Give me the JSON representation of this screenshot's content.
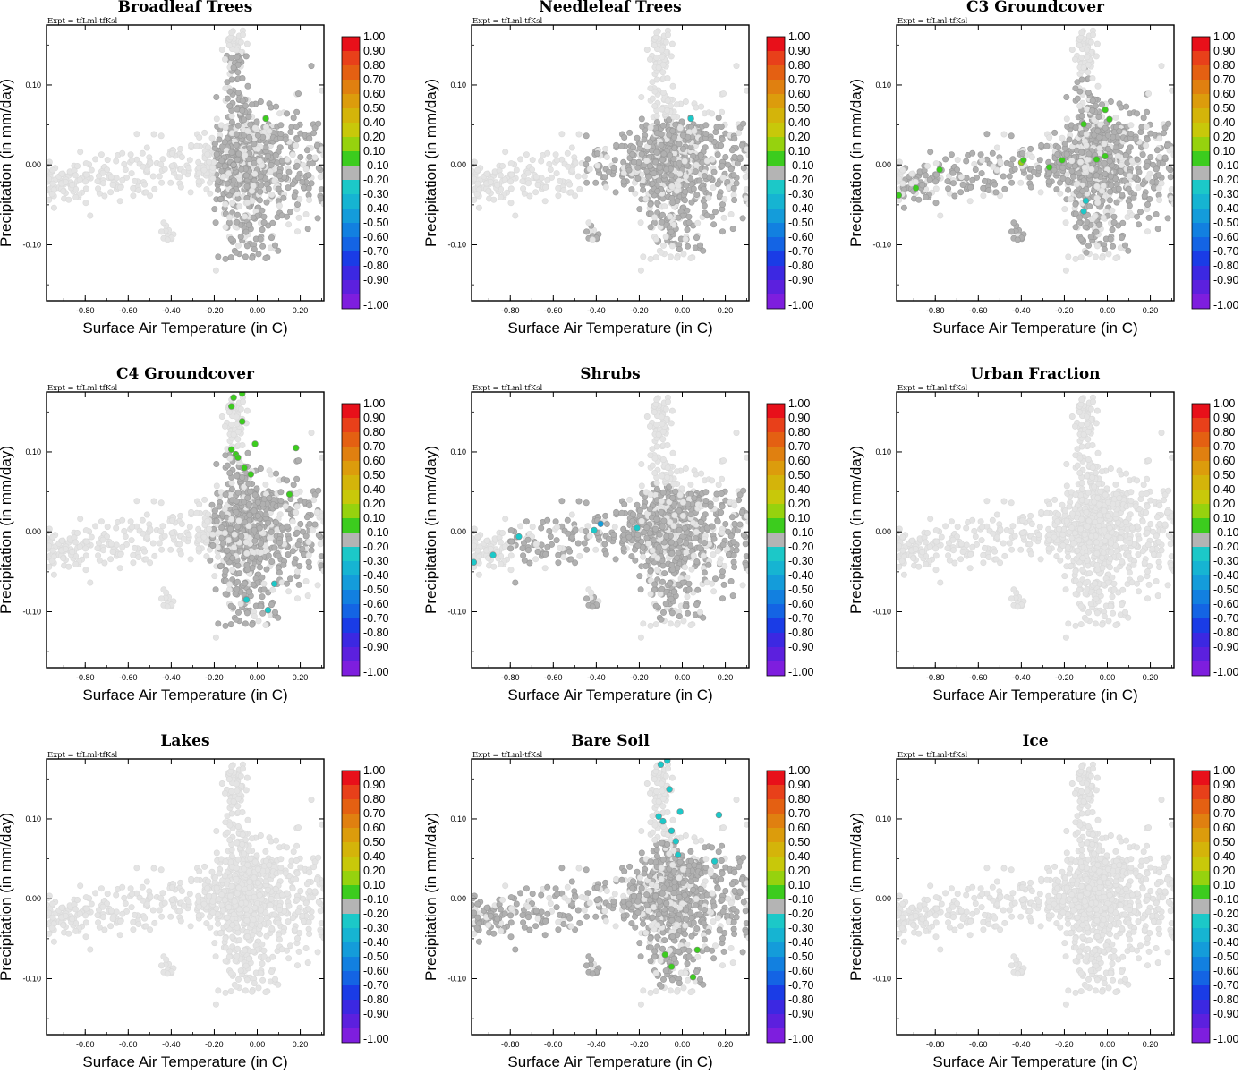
{
  "figure": {
    "expt_label": "Expt = tfLml-tfKsl",
    "colorbar": {
      "labels": [
        "1.00",
        "0.90",
        "0.80",
        "0.70",
        "0.60",
        "0.50",
        "0.40",
        "0.20",
        "0.10",
        "-0.10",
        "-0.20",
        "-0.30",
        "-0.40",
        "-0.50",
        "-0.60",
        "-0.70",
        "-0.80",
        "-0.90",
        "-1.00"
      ],
      "colors": [
        "#e8101a",
        "#e8401a",
        "#e46012",
        "#e08010",
        "#dc9c0c",
        "#d4b40a",
        "#c8c80a",
        "#96d20e",
        "#3ccc1e",
        "#b4b4b4",
        "#1cc8c8",
        "#16b4d2",
        "#149cda",
        "#1280e0",
        "#1464e4",
        "#1a3ce6",
        "#3c28e2",
        "#5c20de",
        "#7e1ede"
      ]
    }
  },
  "chart_data": [
    {
      "type": "scatter",
      "title": "Broadleaf Trees",
      "xlabel": "Surface Air Temperature (in C)",
      "ylabel": "Precipitation (in mm/day)",
      "xlim": [
        -0.98,
        0.31
      ],
      "ylim": [
        -0.17,
        0.175
      ],
      "xticks": [
        "-0.80",
        "-0.60",
        "-0.40",
        "-0.20",
        "0.00",
        "0.20"
      ],
      "yticks": [
        "0.10",
        "0.00",
        "-0.10"
      ],
      "highlight": {
        "x_min": -0.2,
        "x_max": 0.3,
        "y_min": -0.12,
        "y_max": 0.14
      },
      "colored_points": [
        {
          "x": 0.04,
          "y": 0.058,
          "color": "#3ccc1e"
        },
        {
          "x": -0.11,
          "y": 0.0,
          "color": "#b4b4b4"
        }
      ]
    },
    {
      "type": "scatter",
      "title": "Needleleaf Trees",
      "xlabel": "Surface Air Temperature (in C)",
      "ylabel": "Precipitation (in mm/day)",
      "xlim": [
        -0.98,
        0.31
      ],
      "ylim": [
        -0.17,
        0.175
      ],
      "xticks": [
        "-0.80",
        "-0.60",
        "-0.40",
        "-0.20",
        "0.00",
        "0.20"
      ],
      "yticks": [
        "0.10",
        "0.00",
        "-0.10"
      ],
      "highlight": {
        "x_min": -0.45,
        "x_max": 0.3,
        "y_min": -0.11,
        "y_max": 0.06
      },
      "colored_points": [
        {
          "x": 0.04,
          "y": 0.058,
          "color": "#1cc8c8"
        }
      ]
    },
    {
      "type": "scatter",
      "title": "C3 Groundcover",
      "xlabel": "Surface Air Temperature (in C)",
      "ylabel": "Precipitation (in mm/day)",
      "xlim": [
        -0.98,
        0.31
      ],
      "ylim": [
        -0.17,
        0.175
      ],
      "xticks": [
        "-0.80",
        "-0.60",
        "-0.40",
        "-0.20",
        "0.00",
        "0.20"
      ],
      "yticks": [
        "0.10",
        "0.00",
        "-0.10"
      ],
      "highlight": {
        "x_min": -0.95,
        "x_max": 0.3,
        "y_min": -0.11,
        "y_max": 0.12
      },
      "colored_points": [
        {
          "x": -0.97,
          "y": -0.038,
          "color": "#3ccc1e"
        },
        {
          "x": -0.89,
          "y": -0.029,
          "color": "#3ccc1e"
        },
        {
          "x": -0.78,
          "y": -0.006,
          "color": "#3ccc1e"
        },
        {
          "x": -0.4,
          "y": 0.003,
          "color": "#96d20e"
        },
        {
          "x": -0.39,
          "y": 0.006,
          "color": "#3ccc1e"
        },
        {
          "x": -0.27,
          "y": -0.003,
          "color": "#3ccc1e"
        },
        {
          "x": -0.21,
          "y": 0.006,
          "color": "#3ccc1e"
        },
        {
          "x": -0.11,
          "y": 0.051,
          "color": "#3ccc1e"
        },
        {
          "x": -0.05,
          "y": 0.007,
          "color": "#3ccc1e"
        },
        {
          "x": -0.01,
          "y": 0.069,
          "color": "#3ccc1e"
        },
        {
          "x": 0.01,
          "y": 0.057,
          "color": "#3ccc1e"
        },
        {
          "x": -0.01,
          "y": 0.011,
          "color": "#3ccc1e"
        },
        {
          "x": -0.1,
          "y": -0.045,
          "color": "#1cc8c8"
        },
        {
          "x": -0.11,
          "y": -0.058,
          "color": "#1cc8c8"
        }
      ]
    },
    {
      "type": "scatter",
      "title": "C4 Groundcover",
      "xlabel": "Surface Air Temperature (in C)",
      "ylabel": "Precipitation (in mm/day)",
      "xlim": [
        -0.98,
        0.31
      ],
      "ylim": [
        -0.17,
        0.175
      ],
      "xticks": [
        "-0.80",
        "-0.60",
        "-0.40",
        "-0.20",
        "0.00",
        "0.20"
      ],
      "yticks": [
        "0.10",
        "0.00",
        "-0.10"
      ],
      "highlight": {
        "x_min": -0.22,
        "x_max": 0.3,
        "y_min": -0.12,
        "y_max": 0.1
      },
      "colored_points": [
        {
          "x": -0.11,
          "y": 0.168,
          "color": "#3ccc1e"
        },
        {
          "x": -0.07,
          "y": 0.173,
          "color": "#3ccc1e"
        },
        {
          "x": -0.12,
          "y": 0.157,
          "color": "#3ccc1e"
        },
        {
          "x": -0.07,
          "y": 0.138,
          "color": "#3ccc1e"
        },
        {
          "x": -0.12,
          "y": 0.103,
          "color": "#3ccc1e"
        },
        {
          "x": -0.1,
          "y": 0.097,
          "color": "#3ccc1e"
        },
        {
          "x": -0.09,
          "y": 0.093,
          "color": "#3ccc1e"
        },
        {
          "x": -0.06,
          "y": 0.08,
          "color": "#3ccc1e"
        },
        {
          "x": -0.03,
          "y": 0.072,
          "color": "#3ccc1e"
        },
        {
          "x": -0.01,
          "y": 0.11,
          "color": "#3ccc1e"
        },
        {
          "x": 0.18,
          "y": 0.105,
          "color": "#3ccc1e"
        },
        {
          "x": 0.15,
          "y": 0.047,
          "color": "#3ccc1e"
        },
        {
          "x": -0.05,
          "y": -0.085,
          "color": "#1cc8c8"
        },
        {
          "x": 0.08,
          "y": -0.065,
          "color": "#1cc8c8"
        },
        {
          "x": 0.05,
          "y": -0.098,
          "color": "#1cc8c8"
        }
      ]
    },
    {
      "type": "scatter",
      "title": "Shrubs",
      "xlabel": "Surface Air Temperature (in C)",
      "ylabel": "Precipitation (in mm/day)",
      "xlim": [
        -0.98,
        0.31
      ],
      "ylim": [
        -0.17,
        0.175
      ],
      "xticks": [
        "-0.80",
        "-0.60",
        "-0.40",
        "-0.20",
        "0.00",
        "0.20"
      ],
      "yticks": [
        "0.10",
        "0.00",
        "-0.10"
      ],
      "highlight": {
        "x_min": -0.8,
        "x_max": 0.3,
        "y_min": -0.11,
        "y_max": 0.06
      },
      "colored_points": [
        {
          "x": -0.97,
          "y": -0.038,
          "color": "#1cc8c8"
        },
        {
          "x": -0.88,
          "y": -0.029,
          "color": "#1cc8c8"
        },
        {
          "x": -0.76,
          "y": -0.006,
          "color": "#1cc8c8"
        },
        {
          "x": -0.41,
          "y": 0.002,
          "color": "#1cc8c8"
        },
        {
          "x": -0.38,
          "y": 0.01,
          "color": "#149cda"
        },
        {
          "x": -0.21,
          "y": 0.005,
          "color": "#1cc8c8"
        }
      ]
    },
    {
      "type": "scatter",
      "title": "Urban Fraction",
      "xlabel": "Surface Air Temperature (in C)",
      "ylabel": "Precipitation (in mm/day)",
      "xlim": [
        -0.98,
        0.31
      ],
      "ylim": [
        -0.17,
        0.175
      ],
      "xticks": [
        "-0.80",
        "-0.60",
        "-0.40",
        "-0.20",
        "0.00",
        "0.20"
      ],
      "yticks": [
        "0.10",
        "0.00",
        "-0.10"
      ],
      "highlight": null,
      "colored_points": []
    },
    {
      "type": "scatter",
      "title": "Lakes",
      "xlabel": "Surface Air Temperature (in C)",
      "ylabel": "Precipitation (in mm/day)",
      "xlim": [
        -0.98,
        0.31
      ],
      "ylim": [
        -0.17,
        0.175
      ],
      "xticks": [
        "-0.80",
        "-0.60",
        "-0.40",
        "-0.20",
        "0.00",
        "0.20"
      ],
      "yticks": [
        "0.10",
        "0.00",
        "-0.10"
      ],
      "highlight": null,
      "colored_points": []
    },
    {
      "type": "scatter",
      "title": "Bare Soil",
      "xlabel": "Surface Air Temperature (in C)",
      "ylabel": "Precipitation (in mm/day)",
      "xlim": [
        -0.98,
        0.31
      ],
      "ylim": [
        -0.17,
        0.175
      ],
      "xticks": [
        "-0.80",
        "-0.60",
        "-0.40",
        "-0.20",
        "0.00",
        "0.20"
      ],
      "yticks": [
        "0.10",
        "0.00",
        "-0.10"
      ],
      "highlight": {
        "x_min": -0.98,
        "x_max": 0.3,
        "y_min": -0.11,
        "y_max": 0.07
      },
      "colored_points": [
        {
          "x": -0.1,
          "y": 0.168,
          "color": "#1cc8c8"
        },
        {
          "x": -0.07,
          "y": 0.173,
          "color": "#1cc8c8"
        },
        {
          "x": -0.06,
          "y": 0.137,
          "color": "#1cc8c8"
        },
        {
          "x": -0.11,
          "y": 0.103,
          "color": "#1cc8c8"
        },
        {
          "x": -0.09,
          "y": 0.097,
          "color": "#1cc8c8"
        },
        {
          "x": -0.05,
          "y": 0.085,
          "color": "#1cc8c8"
        },
        {
          "x": -0.03,
          "y": 0.072,
          "color": "#1cc8c8"
        },
        {
          "x": -0.01,
          "y": 0.109,
          "color": "#1cc8c8"
        },
        {
          "x": 0.17,
          "y": 0.105,
          "color": "#1cc8c8"
        },
        {
          "x": 0.15,
          "y": 0.047,
          "color": "#1cc8c8"
        },
        {
          "x": -0.02,
          "y": 0.055,
          "color": "#1cc8c8"
        },
        {
          "x": -0.08,
          "y": -0.07,
          "color": "#3ccc1e"
        },
        {
          "x": 0.07,
          "y": -0.064,
          "color": "#3ccc1e"
        },
        {
          "x": 0.05,
          "y": -0.098,
          "color": "#3ccc1e"
        },
        {
          "x": -0.05,
          "y": -0.085,
          "color": "#3ccc1e"
        }
      ]
    },
    {
      "type": "scatter",
      "title": "Ice",
      "xlabel": "Surface Air Temperature (in C)",
      "ylabel": "Precipitation (in mm/day)",
      "xlim": [
        -0.98,
        0.31
      ],
      "ylim": [
        -0.17,
        0.175
      ],
      "xticks": [
        "-0.80",
        "-0.60",
        "-0.40",
        "-0.20",
        "0.00",
        "0.20"
      ],
      "yticks": [
        "0.10",
        "0.00",
        "-0.10"
      ],
      "highlight": null,
      "colored_points": []
    }
  ]
}
